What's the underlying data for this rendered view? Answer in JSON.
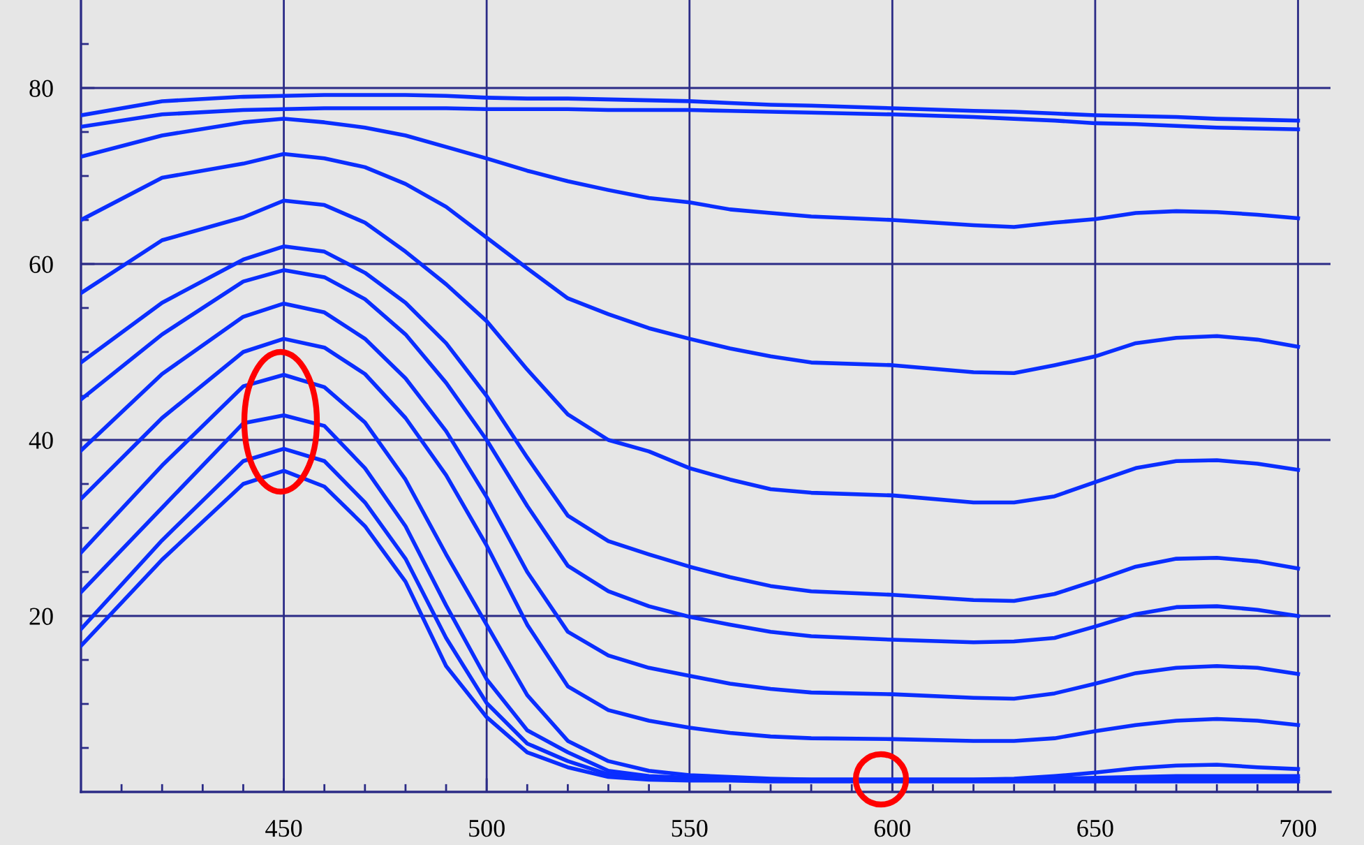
{
  "chart_data": {
    "type": "line",
    "x": [
      400,
      420,
      440,
      450,
      460,
      470,
      480,
      490,
      500,
      510,
      520,
      530,
      540,
      550,
      560,
      570,
      580,
      600,
      620,
      630,
      640,
      650,
      660,
      670,
      680,
      690,
      700
    ],
    "series": [
      {
        "color": "#0a2eff",
        "values": [
          76.9,
          78.5,
          79.0,
          79.1,
          79.2,
          79.2,
          79.2,
          79.1,
          78.9,
          78.8,
          78.8,
          78.7,
          78.6,
          78.5,
          78.3,
          78.1,
          78.0,
          77.7,
          77.4,
          77.3,
          77.1,
          76.9,
          76.8,
          76.7,
          76.5,
          76.4,
          76.3
        ]
      },
      {
        "color": "#0a2eff",
        "values": [
          75.6,
          77.0,
          77.5,
          77.6,
          77.7,
          77.7,
          77.7,
          77.7,
          77.6,
          77.6,
          77.6,
          77.5,
          77.5,
          77.5,
          77.4,
          77.3,
          77.2,
          77.0,
          76.7,
          76.5,
          76.3,
          76.0,
          75.9,
          75.7,
          75.5,
          75.4,
          75.3
        ]
      },
      {
        "color": "#0a2eff",
        "values": [
          72.2,
          74.6,
          76.1,
          76.5,
          76.1,
          75.5,
          74.6,
          73.3,
          72.0,
          70.6,
          69.4,
          68.4,
          67.5,
          67.0,
          66.2,
          65.8,
          65.4,
          65.0,
          64.4,
          64.2,
          64.7,
          65.1,
          65.8,
          66.0,
          65.9,
          65.6,
          65.2
        ]
      },
      {
        "color": "#0a2eff",
        "values": [
          65.0,
          69.8,
          71.4,
          72.5,
          72.0,
          71.0,
          69.1,
          66.5,
          63.0,
          59.5,
          56.1,
          54.3,
          52.7,
          51.5,
          50.4,
          49.5,
          48.8,
          48.5,
          47.7,
          47.6,
          48.5,
          49.5,
          51.0,
          51.6,
          51.8,
          51.4,
          50.6
        ]
      },
      {
        "color": "#0a2eff",
        "values": [
          56.7,
          62.7,
          65.3,
          67.2,
          66.7,
          64.7,
          61.4,
          57.7,
          53.5,
          48.0,
          42.9,
          40.0,
          38.7,
          36.8,
          35.5,
          34.4,
          34.0,
          33.7,
          32.9,
          32.9,
          33.6,
          35.2,
          36.8,
          37.6,
          37.7,
          37.3,
          36.6
        ]
      },
      {
        "color": "#0a2eff",
        "values": [
          48.8,
          55.6,
          60.5,
          62.0,
          61.4,
          59.0,
          55.6,
          51.0,
          45.0,
          38.0,
          31.4,
          28.5,
          27.0,
          25.6,
          24.4,
          23.4,
          22.8,
          22.4,
          21.8,
          21.7,
          22.5,
          24.0,
          25.6,
          26.5,
          26.6,
          26.2,
          25.4
        ]
      },
      {
        "color": "#0a2eff",
        "values": [
          44.6,
          52.0,
          58.0,
          59.3,
          58.5,
          56.0,
          52.0,
          46.5,
          40.0,
          32.5,
          25.7,
          22.8,
          21.1,
          19.9,
          19.0,
          18.2,
          17.7,
          17.3,
          17.0,
          17.1,
          17.5,
          18.8,
          20.2,
          21.0,
          21.1,
          20.7,
          20.0
        ]
      },
      {
        "color": "#0a2eff",
        "values": [
          38.8,
          47.5,
          54.0,
          55.5,
          54.5,
          51.5,
          47.0,
          41.0,
          33.5,
          25.0,
          18.2,
          15.5,
          14.1,
          13.2,
          12.3,
          11.7,
          11.3,
          11.1,
          10.7,
          10.6,
          11.2,
          12.3,
          13.5,
          14.1,
          14.3,
          14.1,
          13.4
        ]
      },
      {
        "color": "#0a2eff",
        "values": [
          33.3,
          42.5,
          50.0,
          51.5,
          50.5,
          47.5,
          42.5,
          36.0,
          28.0,
          19.0,
          12.0,
          9.3,
          8.1,
          7.3,
          6.7,
          6.3,
          6.1,
          6.0,
          5.8,
          5.8,
          6.1,
          6.9,
          7.6,
          8.1,
          8.3,
          8.1,
          7.6
        ]
      },
      {
        "color": "#0a2eff",
        "values": [
          27.2,
          37.1,
          46.1,
          47.4,
          46.0,
          42.0,
          35.5,
          27.0,
          19.0,
          11.0,
          5.8,
          3.5,
          2.4,
          1.9,
          1.7,
          1.5,
          1.4,
          1.4,
          1.4,
          1.5,
          1.8,
          2.2,
          2.7,
          3.0,
          3.1,
          2.8,
          2.6
        ]
      },
      {
        "color": "#0a2eff",
        "values": [
          22.7,
          32.3,
          41.9,
          42.8,
          41.6,
          36.8,
          30.2,
          21.2,
          12.8,
          7.0,
          4.5,
          2.4,
          1.8,
          1.6,
          1.5,
          1.4,
          1.4,
          1.4,
          1.4,
          1.4,
          1.5,
          1.6,
          1.7,
          1.8,
          1.8,
          1.8,
          1.8
        ]
      },
      {
        "color": "#0a2eff",
        "values": [
          18.5,
          28.6,
          37.6,
          39.0,
          37.6,
          32.9,
          26.5,
          17.5,
          10.1,
          5.5,
          3.5,
          2.0,
          1.6,
          1.4,
          1.4,
          1.3,
          1.3,
          1.3,
          1.3,
          1.3,
          1.4,
          1.4,
          1.5,
          1.5,
          1.5,
          1.5,
          1.5
        ]
      },
      {
        "color": "#0a2eff",
        "values": [
          16.6,
          26.4,
          35.0,
          36.5,
          34.7,
          30.2,
          23.9,
          14.3,
          8.5,
          4.5,
          2.8,
          1.7,
          1.4,
          1.3,
          1.3,
          1.2,
          1.2,
          1.2,
          1.2,
          1.2,
          1.2,
          1.2,
          1.2,
          1.2,
          1.2,
          1.2,
          1.2
        ]
      }
    ],
    "xlim": [
      400,
      708
    ],
    "ylim": [
      0,
      90
    ],
    "xticks": [
      {
        "value": 410,
        "label": null
      },
      {
        "value": 420,
        "label": null
      },
      {
        "value": 430,
        "label": null
      },
      {
        "value": 440,
        "label": null
      },
      450,
      {
        "value": 460,
        "label": null
      },
      {
        "value": 470,
        "label": null
      },
      {
        "value": 480,
        "label": null
      },
      {
        "value": 490,
        "label": null
      },
      500,
      {
        "value": 510,
        "label": null
      },
      {
        "value": 520,
        "label": null
      },
      {
        "value": 530,
        "label": null
      },
      {
        "value": 540,
        "label": null
      },
      550,
      {
        "value": 560,
        "label": null
      },
      {
        "value": 570,
        "label": null
      },
      {
        "value": 580,
        "label": null
      },
      {
        "value": 590,
        "label": null
      },
      600,
      {
        "value": 610,
        "label": null
      },
      {
        "value": 620,
        "label": null
      },
      {
        "value": 630,
        "label": null
      },
      {
        "value": 640,
        "label": null
      },
      650,
      {
        "value": 660,
        "label": null
      },
      {
        "value": 670,
        "label": null
      },
      {
        "value": 680,
        "label": null
      },
      {
        "value": 690,
        "label": null
      },
      700
    ],
    "yticks": [
      {
        "value": 5,
        "label": null
      },
      {
        "value": 10,
        "label": null
      },
      {
        "value": 15,
        "label": null
      },
      20,
      {
        "value": 25,
        "label": null
      },
      {
        "value": 30,
        "label": null
      },
      {
        "value": 35,
        "label": null
      },
      40,
      {
        "value": 45,
        "label": null
      },
      {
        "value": 50,
        "label": null
      },
      {
        "value": 55,
        "label": null
      },
      60,
      {
        "value": 65,
        "label": null
      },
      {
        "value": 70,
        "label": null
      },
      {
        "value": 75,
        "label": null
      },
      80,
      {
        "value": 85,
        "label": null
      }
    ],
    "grid": true,
    "line_style": "solid",
    "marker": "none"
  }
}
